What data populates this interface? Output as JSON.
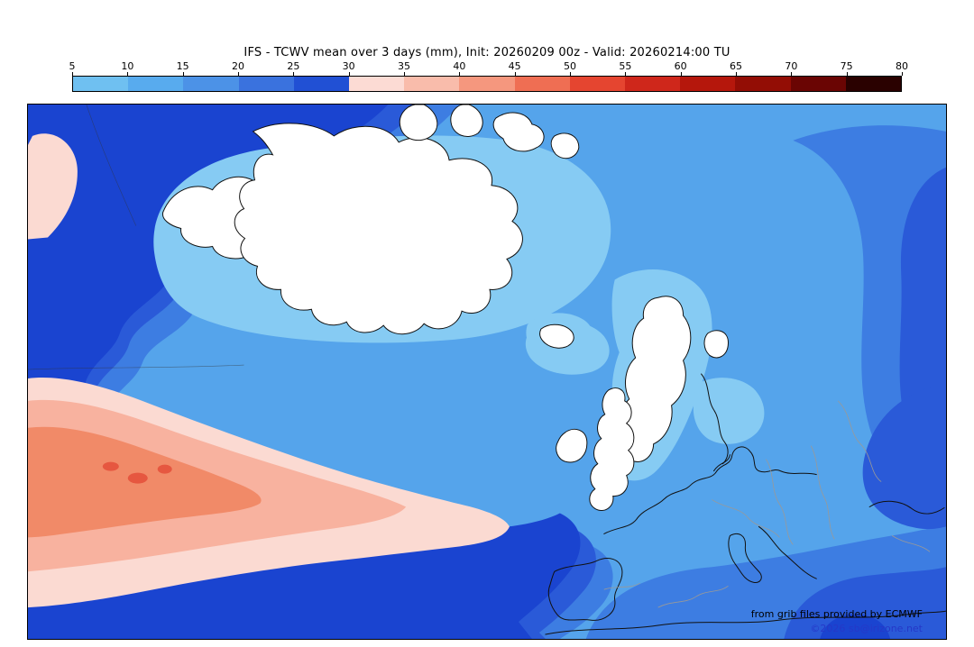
{
  "header": {
    "title": "IFS - TCWV mean over 3 days (mm), Init: 20260209 00z - Valid: 20260214:00 TU"
  },
  "colorbar": {
    "unit": "mm",
    "ticks": [
      "5",
      "10",
      "15",
      "20",
      "25",
      "30",
      "35",
      "40",
      "45",
      "50",
      "55",
      "60",
      "65",
      "70",
      "75",
      "80"
    ],
    "colors": [
      "#6fc0f1",
      "#58abee",
      "#4c92e7",
      "#3a72de",
      "#2150d4",
      "#fcdbd4",
      "#f9bcab",
      "#f5977e",
      "#ef6e53",
      "#e54530",
      "#cf271b",
      "#b5170c",
      "#930d05",
      "#6a0503",
      "#2a0100"
    ]
  },
  "credits": {
    "provider": "from grib files provided by ECMWF",
    "copyright": "©2026 sb@irizone.net"
  },
  "palette": {
    "blue1": "#86cbf3",
    "blue2": "#55a4eb",
    "blue3": "#3d7de2",
    "blue4": "#2a5ad8",
    "blue5": "#1a44d0",
    "pink1": "#fbdad2",
    "pink2": "#f8b29f",
    "pink3": "#f18a68",
    "red1": "#e65740",
    "land": "#ffffff",
    "coast": "#111111",
    "gray": "#999999",
    "link": "#2538c8"
  }
}
